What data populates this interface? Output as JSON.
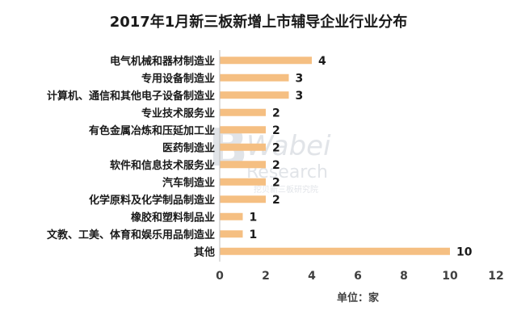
{
  "chart_data": {
    "type": "bar",
    "orientation": "horizontal",
    "title": "2017年1月新三板新增上市辅导企业行业分布",
    "categories": [
      "电气机械和器材制造业",
      "专用设备制造业",
      "计算机、通信和其他电子设备制造业",
      "专业技术服务业",
      "有色金属冶炼和压延加工业",
      "医药制造业",
      "软件和信息技术服务业",
      "汽车制造业",
      "化学原料及化学制品制造业",
      "橡胶和塑料制品业",
      "文教、工美、体育和娱乐用品制造业",
      "其他"
    ],
    "values": [
      4,
      3,
      3,
      2,
      2,
      2,
      2,
      2,
      2,
      1,
      1,
      10
    ],
    "xlabel": "单位：家",
    "ylabel": "",
    "xlim": [
      0,
      12
    ],
    "xticks": [
      0,
      2,
      4,
      6,
      8,
      10,
      12
    ],
    "grid": false,
    "legend": "none",
    "bar_color": "#f5bf82"
  },
  "watermark": {
    "brand": "Wabei",
    "sub": "Research",
    "cn": "挖贝新三板研究院"
  }
}
